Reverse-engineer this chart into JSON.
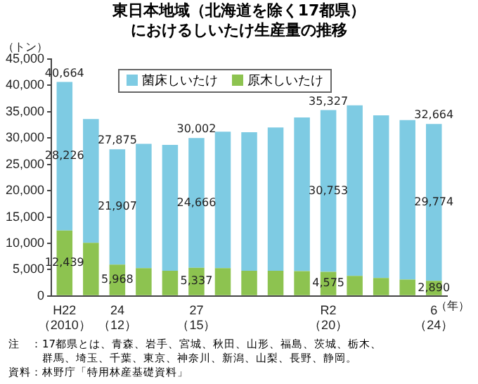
{
  "chart_data": {
    "type": "bar",
    "title": "東日本地域（北海道を除く17都県）におけるしいたけ生産量の推移",
    "ylabel": "（トン）",
    "xlabel": "（年）",
    "categories": [
      "H22\n（2010）",
      null,
      "24\n（12）",
      null,
      null,
      "27\n（15）",
      null,
      null,
      null,
      null,
      "R2\n（20）",
      null,
      null,
      null,
      "6\n（24）"
    ],
    "stacked": true,
    "legend": "top",
    "grid": false,
    "ylim": [
      0,
      45000
    ],
    "yticks": [
      {
        "value": 0,
        "label": "0"
      },
      {
        "value": 5000,
        "label": "5,000"
      },
      {
        "value": 10000,
        "label": "10,000"
      },
      {
        "value": 15000,
        "label": "15,000"
      },
      {
        "value": 20000,
        "label": "20,000"
      },
      {
        "value": 25000,
        "label": "25,000"
      },
      {
        "value": 30000,
        "label": "30,000"
      },
      {
        "value": 35000,
        "label": "35,000"
      },
      {
        "value": 40000,
        "label": "40,000"
      },
      {
        "value": 45000,
        "label": "45,000"
      }
    ],
    "series": [
      {
        "name": "原木しいたけ",
        "color": "#8dc350",
        "values": [
          12439,
          10100,
          5968,
          5300,
          4800,
          5337,
          5300,
          4800,
          4800,
          4700,
          4575,
          3800,
          3400,
          3100,
          2890
        ],
        "value_labels": [
          "12,439",
          null,
          "5,968",
          null,
          null,
          "5,337",
          null,
          null,
          null,
          null,
          "4,575",
          null,
          null,
          null,
          "2,890"
        ]
      },
      {
        "name": "菌床しいたけ",
        "color": "#7ecbe3",
        "values": [
          28226,
          23500,
          21907,
          23600,
          23900,
          24666,
          25900,
          26300,
          27200,
          29200,
          30753,
          32400,
          30900,
          30300,
          29774
        ],
        "value_labels": [
          "28,226",
          null,
          "21,907",
          null,
          null,
          "24,666",
          null,
          null,
          null,
          null,
          "30,753",
          null,
          null,
          null,
          "29,774"
        ]
      }
    ],
    "totals": [
      "40,664",
      null,
      "27,875",
      null,
      null,
      "30,002",
      null,
      null,
      null,
      null,
      "35,327",
      null,
      null,
      null,
      "32,664"
    ],
    "annotations": [
      "注　：17都県とは、青森、岩手、宮城、秋田、山形、福島、茨城、栃木、群馬、埼玉、千葉、東京、神奈川、新潟、山梨、長野、静岡。",
      "資料：林野庁「特用林産基礎資料」"
    ]
  }
}
